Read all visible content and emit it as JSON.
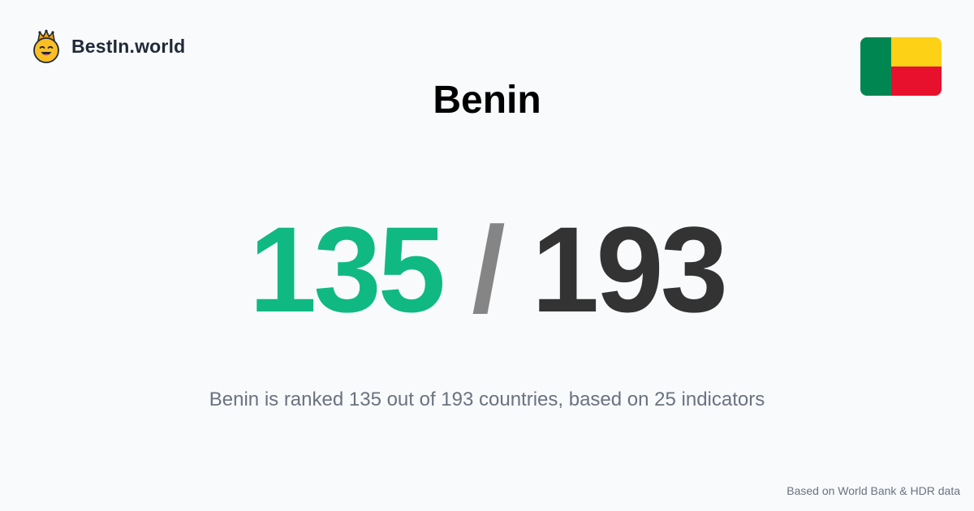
{
  "brand": {
    "name": "BestIn.world",
    "logo_icon": "crowned-smiley-icon"
  },
  "country": {
    "name": "Benin",
    "flag_icon": "benin-flag-icon",
    "flag_colors": {
      "green": "#008751",
      "yellow": "#fcd116",
      "red": "#e8112d"
    }
  },
  "ranking": {
    "rank": "135",
    "separator": "/",
    "total": "193",
    "rank_color": "#10b981",
    "total_color": "#333333"
  },
  "summary": "Benin is ranked 135 out of 193 countries, based on 25 indicators",
  "footer": {
    "source_note": "Based on World Bank & HDR data"
  }
}
